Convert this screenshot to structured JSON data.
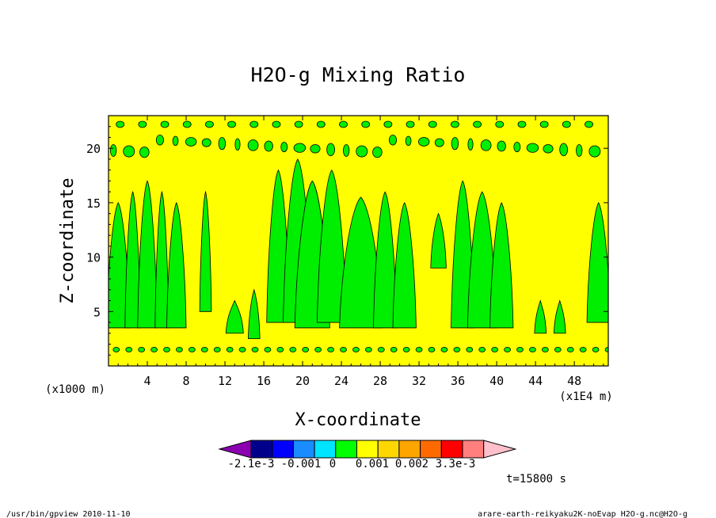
{
  "chart_data": {
    "type": "heatmap",
    "title": "H2O-g Mixing Ratio",
    "xlabel": "X-coordinate",
    "ylabel": "Z-coordinate",
    "x_unit_left": "(x1000 m)",
    "x_unit_right": "(x1E4 m)",
    "xlim": [
      0,
      51.5
    ],
    "ylim": [
      0,
      23
    ],
    "x_ticks": [
      4,
      8,
      12,
      16,
      20,
      24,
      28,
      32,
      36,
      40,
      44,
      48
    ],
    "y_ticks": [
      5,
      10,
      15,
      20
    ],
    "x_tick_labels": [
      "4",
      "8",
      "12",
      "16",
      "20",
      "24",
      "28",
      "32",
      "36",
      "40",
      "44",
      "48"
    ],
    "y_tick_labels": [
      "5",
      "10",
      "15",
      "20"
    ],
    "background_level_color": "#ffff00",
    "colorbar": {
      "colors": [
        "#8b00b0",
        "#00008b",
        "#0000ff",
        "#1a8cff",
        "#00e5ff",
        "#00ff00",
        "#ffff00",
        "#ffd700",
        "#ffa500",
        "#ff6a00",
        "#ff0000",
        "#ff7f7f",
        "#ffc0cb"
      ],
      "labels": [
        "-2.1e-3",
        "-0.001",
        "0",
        "0.001",
        "0.002",
        "3.3e-3"
      ]
    },
    "time_label": "t=15800 s",
    "series": [
      {
        "plumes_x": [
          1,
          3,
          5,
          7,
          10,
          13,
          16,
          19.5,
          21,
          22.5,
          26,
          29,
          30.5,
          37,
          39.5,
          41,
          49,
          51
        ]
      }
    ]
  },
  "footer": {
    "left": "/usr/bin/gpview   2010-11-10",
    "right": "arare-earth-reikyaku2K-noEvap_H2O-g.nc@H2O-g"
  }
}
